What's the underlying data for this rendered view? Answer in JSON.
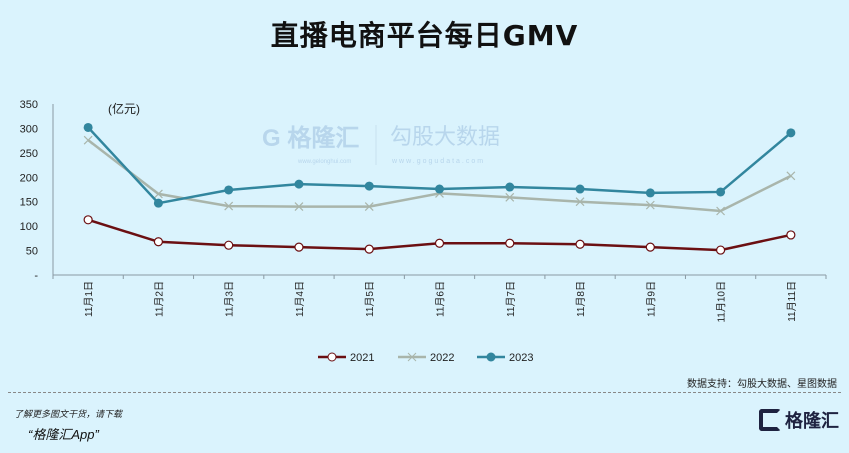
{
  "chart_data": {
    "type": "line",
    "title": "直播电商平台每日GMV",
    "unit_label": "(亿元)",
    "categories": [
      "11月1日",
      "11月2日",
      "11月3日",
      "11月4日",
      "11月5日",
      "11月6日",
      "11月7日",
      "11月8日",
      "11月9日",
      "11月10日",
      "11月11日"
    ],
    "yticks": [
      "-",
      "50",
      "100",
      "150",
      "200",
      "250",
      "300",
      "350"
    ],
    "ylim": [
      0,
      350
    ],
    "series": [
      {
        "name": "2021",
        "color": "#6b0f12",
        "marker": "open-circle",
        "values": [
          113,
          68,
          61,
          57,
          53,
          65,
          65,
          63,
          57,
          51,
          82
        ]
      },
      {
        "name": "2022",
        "color": "#a9b5ab",
        "marker": "x",
        "values": [
          276,
          166,
          141,
          140,
          140,
          167,
          159,
          150,
          143,
          131,
          203
        ]
      },
      {
        "name": "2023",
        "color": "#32869e",
        "marker": "filled-circle",
        "values": [
          302,
          147,
          174,
          186,
          182,
          176,
          180,
          176,
          168,
          170,
          291
        ]
      }
    ],
    "legend_position": "bottom"
  },
  "watermark": {
    "brand": "格隆汇",
    "brand_url": "www.gelonghui.com",
    "partner": "勾股大数据",
    "partner_url": "www.gogudata.com"
  },
  "footer": {
    "source": "数据支持：勾股大数据、星图数据",
    "promo_line1": "了解更多图文干货，请下载",
    "promo_line2": "“格隆汇App”",
    "logo_text": "格隆汇"
  }
}
